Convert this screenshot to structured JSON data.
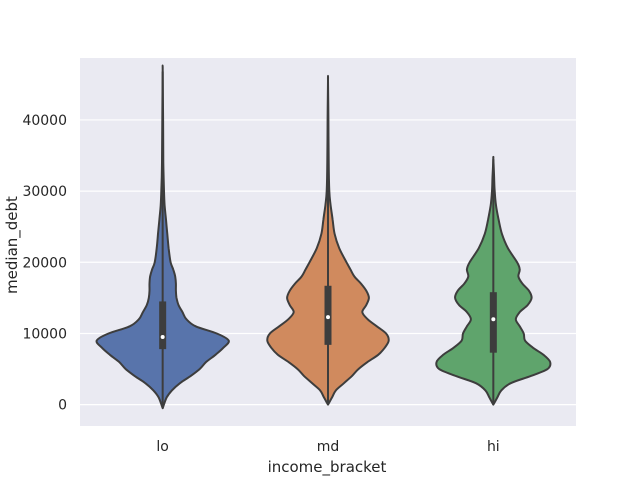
{
  "chart_data": {
    "type": "violin",
    "xlabel": "income_bracket",
    "ylabel": "median_debt",
    "categories": [
      "lo",
      "md",
      "hi"
    ],
    "ylim": [
      -3000,
      48700
    ],
    "yticks": [
      0,
      10000,
      20000,
      30000,
      40000
    ],
    "ytick_labels": [
      "0",
      "10000",
      "20000",
      "30000",
      "40000"
    ],
    "grid": true,
    "background": "#eaeaf2",
    "grid_color": "#ffffff",
    "edge_color": "#3d3d3d",
    "violins": [
      {
        "category": "lo",
        "color": "#5874ab",
        "min": -500,
        "max": 46800,
        "q1": 7800,
        "median": 9500,
        "q3": 14500,
        "whisker_low": 2000,
        "whisker_high": 24300,
        "profile": [
          [
            -500,
            0.0
          ],
          [
            1000,
            0.06
          ],
          [
            2000,
            0.14
          ],
          [
            3000,
            0.26
          ],
          [
            4000,
            0.42
          ],
          [
            5000,
            0.56
          ],
          [
            6000,
            0.66
          ],
          [
            7000,
            0.8
          ],
          [
            8000,
            0.92
          ],
          [
            9000,
            1.0
          ],
          [
            10000,
            0.82
          ],
          [
            11000,
            0.5
          ],
          [
            12000,
            0.36
          ],
          [
            13000,
            0.3
          ],
          [
            14000,
            0.24
          ],
          [
            15000,
            0.21
          ],
          [
            16000,
            0.2
          ],
          [
            17000,
            0.2
          ],
          [
            18000,
            0.19
          ],
          [
            19000,
            0.16
          ],
          [
            20000,
            0.12
          ],
          [
            22000,
            0.09
          ],
          [
            24000,
            0.07
          ],
          [
            26000,
            0.05
          ],
          [
            28000,
            0.03
          ],
          [
            30000,
            0.02
          ],
          [
            34000,
            0.01
          ],
          [
            40000,
            0.006
          ],
          [
            46800,
            0.0
          ]
        ]
      },
      {
        "category": "md",
        "color": "#d08a5e",
        "min": 0,
        "max": 45500,
        "q1": 8400,
        "median": 12300,
        "q3": 16700,
        "whisker_low": 1000,
        "whisker_high": 28000,
        "profile": [
          [
            0,
            0.0
          ],
          [
            1000,
            0.06
          ],
          [
            2000,
            0.12
          ],
          [
            3000,
            0.24
          ],
          [
            4000,
            0.36
          ],
          [
            5000,
            0.46
          ],
          [
            6000,
            0.6
          ],
          [
            7000,
            0.76
          ],
          [
            8000,
            0.86
          ],
          [
            9000,
            0.92
          ],
          [
            10000,
            0.88
          ],
          [
            11000,
            0.74
          ],
          [
            12000,
            0.6
          ],
          [
            13000,
            0.52
          ],
          [
            14000,
            0.58
          ],
          [
            15000,
            0.62
          ],
          [
            16000,
            0.58
          ],
          [
            17000,
            0.5
          ],
          [
            18000,
            0.4
          ],
          [
            19000,
            0.34
          ],
          [
            20000,
            0.28
          ],
          [
            22000,
            0.17
          ],
          [
            24000,
            0.1
          ],
          [
            26000,
            0.07
          ],
          [
            28000,
            0.04
          ],
          [
            30000,
            0.02
          ],
          [
            34000,
            0.01
          ],
          [
            40000,
            0.006
          ],
          [
            45500,
            0.0
          ]
        ]
      },
      {
        "category": "hi",
        "color": "#5fa46c",
        "min": 0,
        "max": 34500,
        "q1": 7300,
        "median": 12000,
        "q3": 15800,
        "whisker_low": 1000,
        "whisker_high": 27000,
        "profile": [
          [
            0,
            0.0
          ],
          [
            1000,
            0.06
          ],
          [
            2000,
            0.12
          ],
          [
            3000,
            0.26
          ],
          [
            4000,
            0.56
          ],
          [
            5000,
            0.82
          ],
          [
            6000,
            0.86
          ],
          [
            7000,
            0.76
          ],
          [
            8000,
            0.6
          ],
          [
            9000,
            0.48
          ],
          [
            10000,
            0.46
          ],
          [
            11000,
            0.4
          ],
          [
            12000,
            0.34
          ],
          [
            13000,
            0.4
          ],
          [
            14000,
            0.52
          ],
          [
            15000,
            0.58
          ],
          [
            16000,
            0.54
          ],
          [
            17000,
            0.44
          ],
          [
            18000,
            0.38
          ],
          [
            19000,
            0.4
          ],
          [
            20000,
            0.36
          ],
          [
            22000,
            0.22
          ],
          [
            24000,
            0.13
          ],
          [
            26000,
            0.08
          ],
          [
            28000,
            0.04
          ],
          [
            30000,
            0.02
          ],
          [
            32000,
            0.012
          ],
          [
            34500,
            0.0
          ]
        ]
      }
    ]
  }
}
